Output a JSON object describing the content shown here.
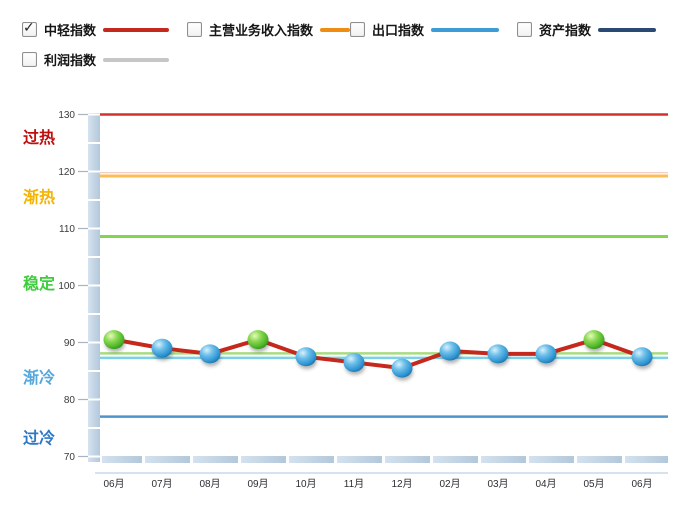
{
  "legend": {
    "items": [
      {
        "label": "中轻指数",
        "checked": true,
        "color": "#C5281C"
      },
      {
        "label": "主营业务收入指数",
        "checked": false,
        "color": "#EF8D13"
      },
      {
        "label": "出口指数",
        "checked": false,
        "color": "#3D9BD5"
      },
      {
        "label": "资产指数",
        "checked": false,
        "color": "#2B4A73"
      },
      {
        "label": "利润指数",
        "checked": false,
        "color": "#C6C6C6"
      }
    ],
    "check_glyph": "✓"
  },
  "chart_data": {
    "type": "line",
    "categories": [
      "06月",
      "07月",
      "08月",
      "09月",
      "10月",
      "11月",
      "12月",
      "02月",
      "03月",
      "04月",
      "05月",
      "06月"
    ],
    "series": [
      {
        "name": "中轻指数",
        "color": "#C5281C",
        "values": [
          90.5,
          89,
          88,
          90.5,
          87.5,
          86.5,
          85.5,
          88.5,
          88,
          88,
          90.5,
          87.5
        ],
        "point_colors": [
          "green",
          "blue",
          "blue",
          "green",
          "blue",
          "blue",
          "blue",
          "blue",
          "blue",
          "blue",
          "green",
          "blue"
        ]
      }
    ],
    "ylim": [
      70,
      130
    ],
    "yticks": [
      70,
      80,
      90,
      100,
      110,
      120,
      130
    ],
    "threshold_lines": [
      {
        "value": 130,
        "color": "#D5312C",
        "width": 2.5
      },
      {
        "value": 119.8,
        "color": "#F2CDC9",
        "width": 1.2
      },
      {
        "value": 119.2,
        "color": "#FBBE55",
        "width": 3
      },
      {
        "value": 108.6,
        "color": "#83D44E",
        "width": 3
      },
      {
        "value": 88.1,
        "color": "#A8DC80",
        "width": 2.5
      },
      {
        "value": 87.3,
        "color": "#7DD0E8",
        "width": 2.5
      },
      {
        "value": 77,
        "color": "#4E94CB",
        "width": 2.5
      }
    ],
    "zone_labels": [
      {
        "text": "过热",
        "color": "#C00D0D",
        "value": 125.9
      },
      {
        "text": "渐热",
        "color": "#F5B400",
        "value": 115.4
      },
      {
        "text": "稳定",
        "color": "#3FCC3F",
        "value": 100.3
      },
      {
        "text": "渐冷",
        "color": "#55A8DE",
        "value": 83.8
      },
      {
        "text": "过冷",
        "color": "#2E77C5",
        "value": 73.2
      }
    ],
    "title": "",
    "xlabel": "",
    "ylabel": "",
    "grid": false,
    "legend_position": "top",
    "point_fill_names": {
      "green": "green-sphere",
      "blue": "blue-sphere"
    }
  }
}
